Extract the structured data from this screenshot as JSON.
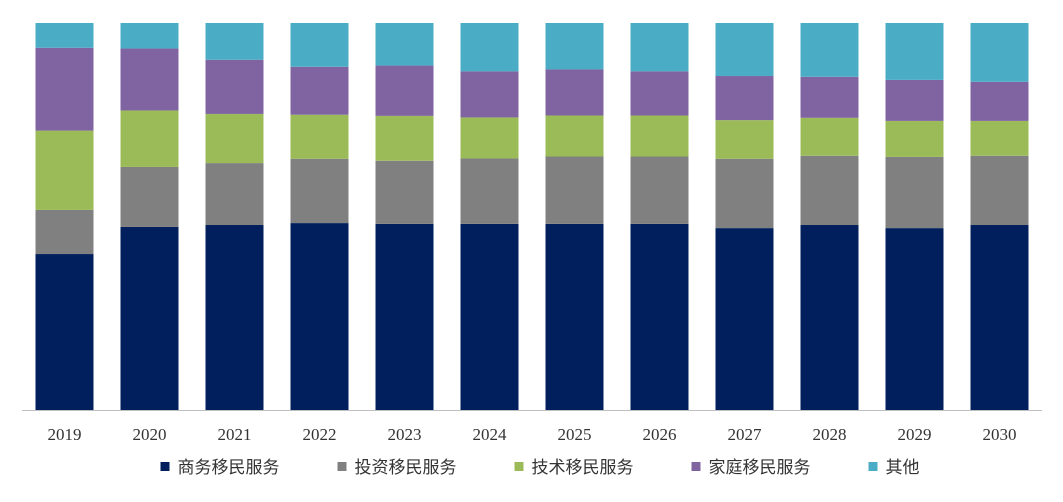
{
  "chart_data": {
    "type": "bar",
    "stacked": true,
    "normalized": true,
    "categories": [
      "2019",
      "2020",
      "2021",
      "2022",
      "2023",
      "2024",
      "2025",
      "2026",
      "2027",
      "2028",
      "2029",
      "2030"
    ],
    "ylim": [
      0,
      100
    ],
    "grid": false,
    "legend_position": "bottom",
    "series": [
      {
        "name": "商务移民服务",
        "color": "#001F5C",
        "values": [
          40.3,
          47.3,
          47.8,
          48.3,
          48.1,
          48.1,
          48.1,
          48.1,
          47.0,
          47.8,
          47.0,
          47.8
        ]
      },
      {
        "name": "投资移民服务",
        "color": "#808080",
        "values": [
          11.4,
          15.5,
          16.0,
          16.6,
          16.3,
          16.9,
          17.4,
          17.4,
          17.9,
          17.9,
          18.4,
          17.9
        ]
      },
      {
        "name": "技术移民服务",
        "color": "#9BBB59",
        "values": [
          20.5,
          14.6,
          12.7,
          11.4,
          11.6,
          10.6,
          10.6,
          10.6,
          10.0,
          9.8,
          9.3,
          9.0
        ]
      },
      {
        "name": "家庭移民服务",
        "color": "#8064A2",
        "values": [
          21.4,
          16.0,
          14.0,
          12.4,
          13.0,
          11.9,
          11.9,
          11.4,
          11.4,
          10.6,
          10.6,
          10.1
        ]
      },
      {
        "name": "其他",
        "color": "#4BACC6",
        "values": [
          6.4,
          6.6,
          9.5,
          11.3,
          11.0,
          12.5,
          12.0,
          12.5,
          13.7,
          13.9,
          14.7,
          15.2
        ]
      }
    ]
  }
}
